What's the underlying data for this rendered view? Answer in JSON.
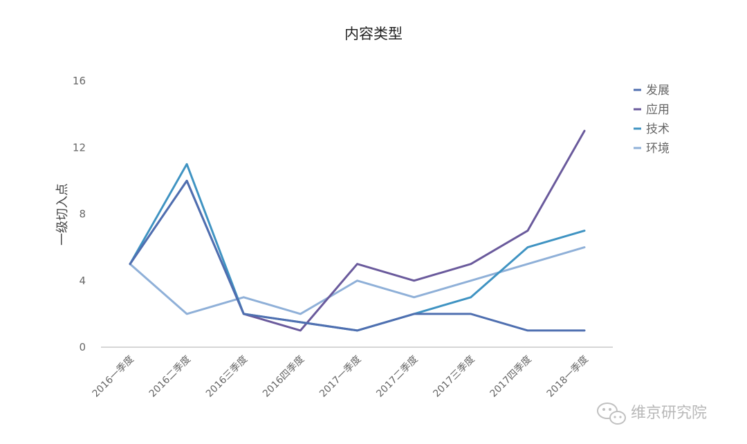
{
  "chart_data": {
    "type": "line",
    "title": "内容类型",
    "ylabel": "一级切入点",
    "xlabel": "",
    "ylim": [
      0,
      16
    ],
    "yticks": [
      0,
      4,
      8,
      12,
      16
    ],
    "categories": [
      "2016一季度",
      "2016二季度",
      "2016三季度",
      "2016四季度",
      "2017一季度",
      "2017二季度",
      "2017三季度",
      "2017四季度",
      "2018一季度"
    ],
    "series": [
      {
        "name": "发展",
        "color": "#4f6fb0",
        "values": [
          5,
          10,
          2,
          1.5,
          1,
          2,
          2,
          1,
          1
        ]
      },
      {
        "name": "应用",
        "color": "#6a5a9c",
        "values": [
          5,
          10,
          2,
          1,
          5,
          4,
          5,
          7,
          13
        ]
      },
      {
        "name": "技术",
        "color": "#3f93c2",
        "values": [
          5,
          11,
          2,
          1.5,
          1,
          2,
          3,
          6,
          7
        ]
      },
      {
        "name": "环境",
        "color": "#8fb0d8",
        "values": [
          5,
          2,
          3,
          2,
          4,
          3,
          4,
          5,
          6
        ]
      }
    ],
    "grid": false,
    "legend_position": "top-right"
  },
  "watermark": {
    "text": "维京研究院",
    "icon": "wechat-icon"
  }
}
